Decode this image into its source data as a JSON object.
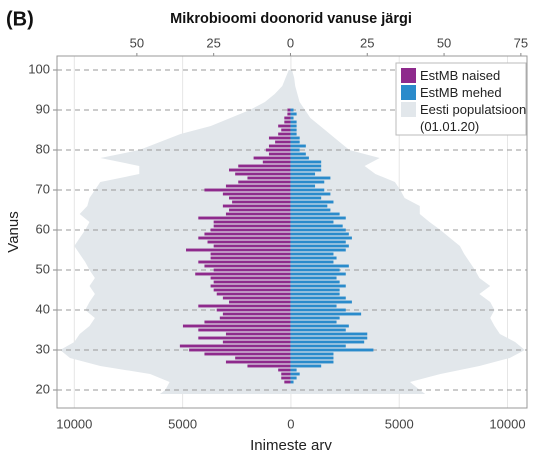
{
  "chart_data": {
    "type": "pyramid",
    "panel_label": "(B)",
    "title": "Mikrobioomi doonorid vanuse järgi",
    "xlabel": "Inimeste arv",
    "ylabel": "Vanus",
    "xlim": [
      -10800,
      10900
    ],
    "xticks": [
      {
        "value": -10000,
        "label": "10000"
      },
      {
        "value": -5000,
        "label": "5000"
      },
      0,
      5000,
      10000
    ],
    "x2lim": [
      -76,
      77
    ],
    "x2ticks": [
      {
        "value": -50,
        "label": "50"
      },
      {
        "value": -25,
        "label": "25"
      },
      0,
      25,
      50,
      75
    ],
    "ylim": [
      15.5,
      103.5
    ],
    "yticks": [
      20,
      30,
      40,
      50,
      60,
      70,
      80,
      90,
      100
    ],
    "grid": true,
    "legend": "upper right",
    "ages": [
      22,
      23,
      24,
      25,
      26,
      27,
      28,
      29,
      30,
      31,
      32,
      33,
      34,
      35,
      36,
      37,
      38,
      39,
      40,
      41,
      42,
      43,
      44,
      45,
      46,
      47,
      48,
      49,
      50,
      51,
      52,
      53,
      54,
      55,
      56,
      57,
      58,
      59,
      60,
      61,
      62,
      63,
      64,
      65,
      66,
      67,
      68,
      69,
      70,
      71,
      72,
      73,
      74,
      75,
      76,
      77,
      78,
      79,
      80,
      81,
      82,
      83,
      84,
      85,
      86,
      87,
      88,
      89,
      90
    ],
    "series": [
      {
        "name": "EstMB naised",
        "color": "#8e2a8c",
        "side": "left",
        "axis": "x2",
        "values": [
          2,
          3,
          3,
          4,
          14,
          21,
          18,
          28,
          33,
          36,
          22,
          30,
          21,
          30,
          35,
          28,
          23,
          22,
          24,
          30,
          20,
          22,
          24,
          25,
          26,
          25,
          26,
          31,
          25,
          28,
          30,
          26,
          26,
          34,
          25,
          27,
          30,
          28,
          26,
          25,
          25,
          30,
          21,
          20,
          22,
          19,
          20,
          22,
          28,
          21,
          17,
          14,
          18,
          20,
          17,
          9,
          12,
          7,
          8,
          7,
          5,
          7,
          4,
          3,
          4,
          2,
          2,
          1,
          1
        ]
      },
      {
        "name": "EstMB mehed",
        "color": "#2a8bcb",
        "side": "right",
        "axis": "x2",
        "values": [
          1,
          2,
          3,
          2,
          10,
          14,
          14,
          14,
          27,
          18,
          24,
          25,
          25,
          18,
          19,
          15,
          16,
          23,
          18,
          15,
          20,
          18,
          16,
          16,
          18,
          16,
          15,
          18,
          16,
          19,
          14,
          15,
          14,
          18,
          19,
          18,
          20,
          19,
          18,
          17,
          14,
          18,
          16,
          13,
          12,
          14,
          10,
          13,
          11,
          8,
          11,
          13,
          8,
          10,
          10,
          10,
          6,
          5,
          3,
          5,
          3,
          3,
          2,
          2,
          2,
          2,
          1,
          2,
          1
        ]
      }
    ],
    "population": {
      "name": "Eesti populatsioon (01.01.20)",
      "color": "#e2e7eb",
      "ages": [
        19,
        20,
        22,
        24,
        26,
        28,
        30,
        32,
        34,
        36,
        38,
        40,
        42,
        44,
        46,
        48,
        50,
        52,
        54,
        56,
        58,
        60,
        62,
        64,
        66,
        68,
        70,
        72,
        74,
        76,
        78,
        80,
        82,
        84,
        86,
        88,
        90,
        92,
        94,
        96,
        98,
        100
      ],
      "left": [
        6050,
        5800,
        5600,
        6500,
        8800,
        10200,
        10650,
        10000,
        9750,
        9300,
        9050,
        9500,
        9300,
        9050,
        9300,
        9050,
        9300,
        9500,
        9750,
        10000,
        9750,
        9500,
        9300,
        9750,
        9400,
        9300,
        9050,
        8800,
        7000,
        7000,
        8800,
        7000,
        6050,
        5100,
        3700,
        2800,
        1900,
        1200,
        750,
        400,
        250,
        100
      ],
      "right": [
        6200,
        5950,
        5500,
        6900,
        8700,
        10100,
        10800,
        10350,
        9650,
        9400,
        9200,
        9400,
        9200,
        8700,
        9200,
        8700,
        8500,
        8250,
        8000,
        7800,
        7350,
        6900,
        6400,
        5950,
        5950,
        5250,
        5050,
        4800,
        3900,
        3400,
        4100,
        2700,
        2250,
        1800,
        1350,
        900,
        650,
        400,
        300,
        200,
        150,
        50
      ]
    }
  }
}
